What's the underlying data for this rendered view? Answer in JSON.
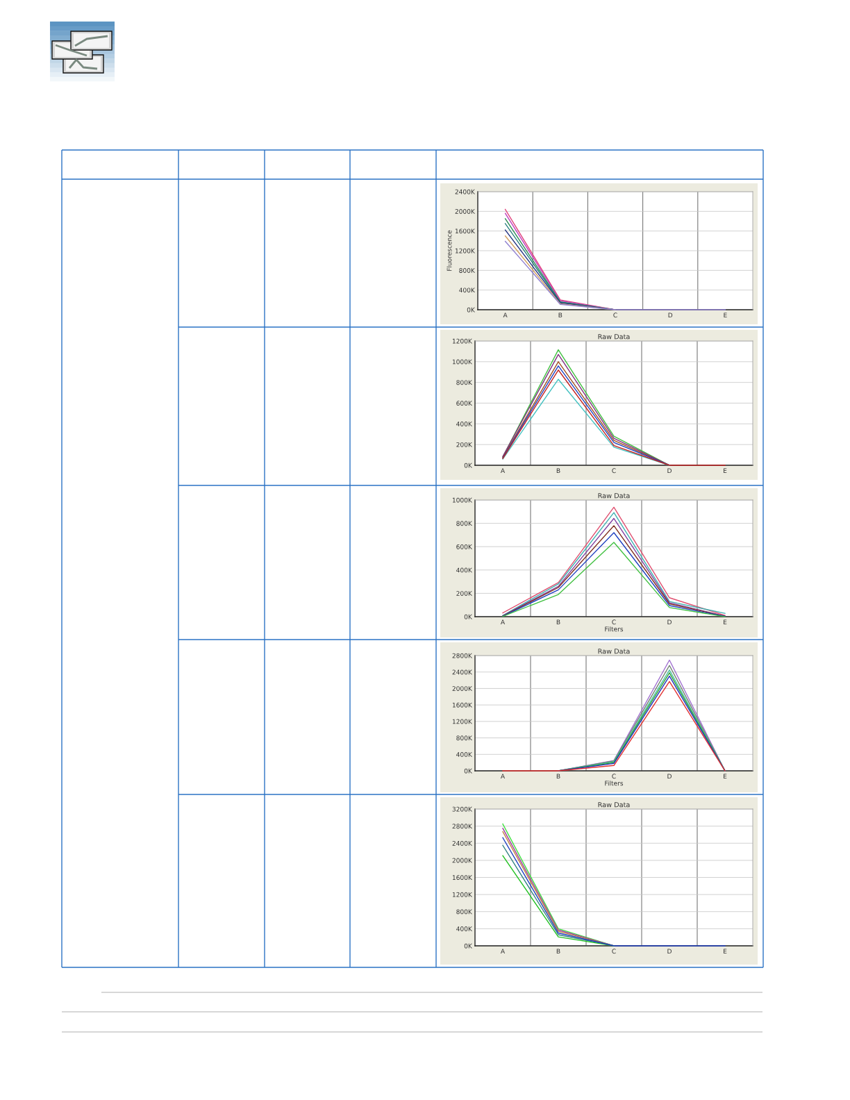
{
  "chart_data": [
    {
      "type": "line",
      "ylabel": "Fluorescence",
      "categories": [
        "A",
        "B",
        "C",
        "D",
        "E"
      ],
      "grid": true,
      "ylim": [
        0,
        2400
      ],
      "yticks": [
        {
          "value": 0,
          "label": "0K"
        },
        {
          "value": 400,
          "label": "400K"
        },
        {
          "value": 800,
          "label": "800K"
        },
        {
          "value": 1200,
          "label": "1200K"
        },
        {
          "value": 1600,
          "label": "1600K"
        },
        {
          "value": 2000,
          "label": "2000K"
        },
        {
          "value": 2400,
          "label": "2400K"
        }
      ],
      "series": [
        {
          "color": "#e0407a",
          "values": [
            2040,
            200,
            0,
            null,
            null
          ]
        },
        {
          "color": "#c040c0",
          "values": [
            1960,
            180,
            0,
            null,
            null
          ]
        },
        {
          "color": "#2e8b57",
          "values": [
            1850,
            160,
            0,
            null,
            null
          ]
        },
        {
          "color": "#1f7a7a",
          "values": [
            1750,
            150,
            0,
            null,
            null
          ]
        },
        {
          "color": "#203080",
          "values": [
            1620,
            140,
            0,
            null,
            null
          ]
        },
        {
          "color": "#d2a060",
          "values": [
            1500,
            120,
            0,
            null,
            null
          ]
        },
        {
          "color": "#9080d0",
          "values": [
            1390,
            110,
            0,
            0,
            0
          ]
        }
      ]
    },
    {
      "type": "line",
      "title": "Raw Data",
      "categories": [
        "A",
        "B",
        "C",
        "D",
        "E"
      ],
      "grid": true,
      "ylim": [
        0,
        1200
      ],
      "yticks": [
        {
          "value": 0,
          "label": "0K"
        },
        {
          "value": 200,
          "label": "200K"
        },
        {
          "value": 400,
          "label": "400K"
        },
        {
          "value": 600,
          "label": "600K"
        },
        {
          "value": 800,
          "label": "800K"
        },
        {
          "value": 1000,
          "label": "1000K"
        },
        {
          "value": 1200,
          "label": "1200K"
        }
      ],
      "series": [
        {
          "color": "#40c040",
          "values": [
            80,
            1115,
            280,
            0,
            null
          ]
        },
        {
          "color": "#803080",
          "values": [
            85,
            1070,
            260,
            0,
            null
          ]
        },
        {
          "color": "#a05020",
          "values": [
            75,
            1000,
            240,
            0,
            null
          ]
        },
        {
          "color": "#2040c0",
          "values": [
            70,
            960,
            220,
            0,
            null
          ]
        },
        {
          "color": "#40c0c0",
          "values": [
            60,
            830,
            175,
            0,
            null
          ]
        },
        {
          "color": "#c02020",
          "values": [
            65,
            920,
            190,
            0,
            0
          ]
        }
      ]
    },
    {
      "type": "line",
      "title": "Raw Data",
      "xlabel": "Filters",
      "categories": [
        "A",
        "B",
        "C",
        "D",
        "E"
      ],
      "grid": true,
      "ylim": [
        0,
        1000
      ],
      "yticks": [
        {
          "value": 0,
          "label": "0K"
        },
        {
          "value": 200,
          "label": "200K"
        },
        {
          "value": 400,
          "label": "400K"
        },
        {
          "value": 600,
          "label": "600K"
        },
        {
          "value": 800,
          "label": "800K"
        },
        {
          "value": 1000,
          "label": "1000K"
        }
      ],
      "series": [
        {
          "color": "#e05070",
          "values": [
            32,
            292,
            938,
            162,
            10
          ]
        },
        {
          "color": "#40b0b0",
          "values": [
            10,
            280,
            892,
            130,
            28
          ]
        },
        {
          "color": "#8040a0",
          "values": [
            8,
            260,
            842,
            120,
            5
          ]
        },
        {
          "color": "#803020",
          "values": [
            5,
            250,
            780,
            110,
            3
          ]
        },
        {
          "color": "#2040c0",
          "values": [
            3,
            230,
            720,
            95,
            2
          ]
        },
        {
          "color": "#40c040",
          "values": [
            2,
            190,
            637,
            78,
            0
          ]
        }
      ]
    },
    {
      "type": "line",
      "title": "Raw Data",
      "xlabel": "Filters",
      "categories": [
        "A",
        "B",
        "C",
        "D",
        "E"
      ],
      "grid": true,
      "ylim": [
        0,
        2800
      ],
      "yticks": [
        {
          "value": 0,
          "label": "0K"
        },
        {
          "value": 400,
          "label": "400K"
        },
        {
          "value": 800,
          "label": "800K"
        },
        {
          "value": 1200,
          "label": "1200K"
        },
        {
          "value": 1600,
          "label": "1600K"
        },
        {
          "value": 2000,
          "label": "2000K"
        },
        {
          "value": 2400,
          "label": "2400K"
        },
        {
          "value": 2800,
          "label": "2800K"
        }
      ],
      "series": [
        {
          "color": "#a070d0",
          "values": [
            null,
            0,
            250,
            2690,
            0
          ]
        },
        {
          "color": "#708070",
          "values": [
            null,
            0,
            240,
            2560,
            0
          ]
        },
        {
          "color": "#40c0a0",
          "values": [
            null,
            0,
            220,
            2450,
            0
          ]
        },
        {
          "color": "#30a030",
          "values": [
            null,
            0,
            200,
            2380,
            0
          ]
        },
        {
          "color": "#2030c0",
          "values": [
            null,
            0,
            180,
            2300,
            0
          ]
        },
        {
          "color": "#e03030",
          "values": [
            0,
            0,
            130,
            2170,
            0
          ]
        }
      ]
    },
    {
      "type": "line",
      "title": "Raw Data",
      "categories": [
        "A",
        "B",
        "C",
        "D",
        "E"
      ],
      "grid": true,
      "ylim": [
        0,
        3200
      ],
      "yticks": [
        {
          "value": 0,
          "label": "0K"
        },
        {
          "value": 400,
          "label": "400K"
        },
        {
          "value": 800,
          "label": "800K"
        },
        {
          "value": 1200,
          "label": "1200K"
        },
        {
          "value": 1600,
          "label": "1600K"
        },
        {
          "value": 2000,
          "label": "2000K"
        },
        {
          "value": 2400,
          "label": "2400K"
        },
        {
          "value": 2800,
          "label": "2800K"
        },
        {
          "value": 3200,
          "label": "3200K"
        }
      ],
      "series": [
        {
          "color": "#40e040",
          "values": [
            2850,
            400,
            0,
            null,
            null
          ]
        },
        {
          "color": "#a040a0",
          "values": [
            2750,
            370,
            0,
            null,
            null
          ]
        },
        {
          "color": "#c08040",
          "values": [
            2670,
            340,
            0,
            null,
            null
          ]
        },
        {
          "color": "#308080",
          "values": [
            2350,
            260,
            0,
            null,
            null
          ]
        },
        {
          "color": "#20c020",
          "values": [
            2110,
            210,
            0,
            null,
            null
          ]
        },
        {
          "color": "#2040c0",
          "values": [
            2530,
            300,
            0,
            0,
            0
          ]
        }
      ]
    }
  ]
}
